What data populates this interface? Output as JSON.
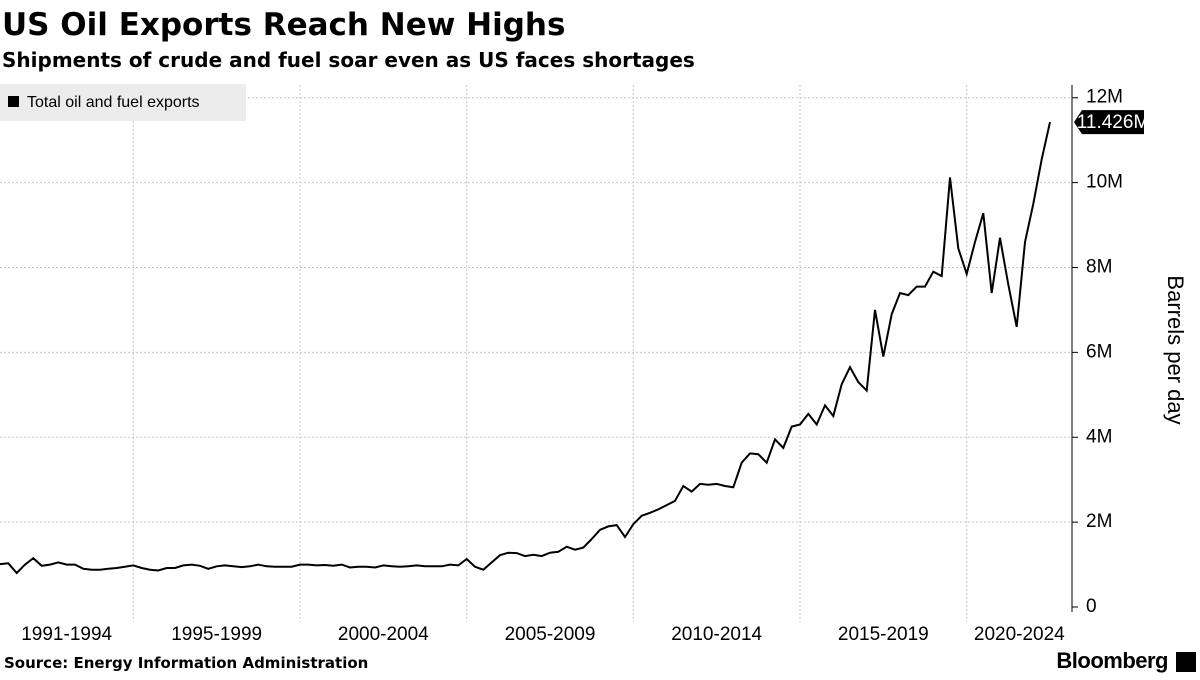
{
  "chart_data": {
    "type": "line",
    "title": "US Oil Exports Reach New Highs",
    "subtitle": "Shipments of crude and fuel soar even as US faces shortages",
    "source": "Source: Energy Information Administration",
    "brand": "Bloomberg",
    "y_label": "Barrels per day",
    "categories": [
      null,
      null,
      null,
      null,
      null,
      null,
      null,
      null,
      "1991-1994",
      null,
      null,
      null,
      null,
      null,
      null,
      null,
      null,
      null,
      null,
      null,
      null,
      null,
      null,
      null,
      null,
      null,
      "1995-1999",
      null,
      null,
      null,
      null,
      null,
      null,
      null,
      null,
      null,
      null,
      null,
      null,
      null,
      null,
      null,
      null,
      null,
      null,
      null,
      "2000-2004",
      null,
      null,
      null,
      null,
      null,
      null,
      null,
      null,
      null,
      null,
      null,
      null,
      null,
      null,
      null,
      null,
      null,
      null,
      null,
      "2005-2009",
      null,
      null,
      null,
      null,
      null,
      null,
      null,
      null,
      null,
      null,
      null,
      null,
      null,
      null,
      null,
      null,
      null,
      null,
      null,
      "2010-2014",
      null,
      null,
      null,
      null,
      null,
      null,
      null,
      null,
      null,
      null,
      null,
      null,
      null,
      null,
      null,
      null,
      null,
      null,
      null,
      "2015-2019",
      null,
      null,
      null,
      null,
      null,
      null,
      null,
      null,
      null,
      null,
      null,
      null,
      null,
      null,
      null,
      null,
      null,
      null,
      null,
      "2020-2024"
    ],
    "series": [
      {
        "name": "Total oil and fuel exports",
        "color": "#000000",
        "values": [
          1.01,
          1.03,
          0.8,
          1.0,
          1.15,
          0.97,
          1.0,
          1.05,
          1.0,
          1.0,
          0.9,
          0.88,
          0.88,
          0.9,
          0.92,
          0.95,
          0.98,
          0.92,
          0.88,
          0.86,
          0.92,
          0.92,
          0.98,
          1.0,
          0.97,
          0.9,
          0.96,
          0.98,
          0.96,
          0.94,
          0.96,
          1.0,
          0.96,
          0.95,
          0.95,
          0.95,
          1.0,
          1.0,
          0.98,
          0.99,
          0.97,
          1.0,
          0.93,
          0.95,
          0.95,
          0.93,
          0.98,
          0.96,
          0.95,
          0.96,
          0.98,
          0.96,
          0.96,
          0.96,
          1.0,
          0.98,
          1.13,
          0.95,
          0.88,
          1.05,
          1.22,
          1.28,
          1.27,
          1.2,
          1.23,
          1.2,
          1.28,
          1.3,
          1.42,
          1.35,
          1.4,
          1.6,
          1.82,
          1.9,
          1.93,
          1.65,
          1.95,
          2.15,
          2.22,
          2.3,
          2.4,
          2.5,
          2.85,
          2.72,
          2.9,
          2.88,
          2.9,
          2.85,
          2.82,
          3.4,
          3.62,
          3.6,
          3.4,
          3.95,
          3.75,
          4.25,
          4.3,
          4.55,
          4.3,
          4.75,
          4.5,
          5.25,
          5.65,
          5.3,
          5.1,
          7.0,
          5.9,
          6.9,
          7.4,
          7.35,
          7.55,
          7.55,
          7.9,
          7.8,
          10.12,
          8.45,
          7.85,
          8.6,
          9.28,
          7.4,
          8.7,
          7.6,
          6.6,
          8.6,
          9.5,
          10.55,
          11.426
        ],
        "value_labels": [
          null,
          null,
          null,
          null,
          null,
          null,
          null,
          null,
          null,
          null,
          null,
          null,
          null,
          null,
          null,
          null,
          null,
          null,
          null,
          null,
          null,
          null,
          null,
          null,
          null,
          null,
          null,
          null,
          null,
          null,
          null,
          null,
          null,
          null,
          null,
          null,
          null,
          null,
          null,
          null,
          null,
          null,
          null,
          null,
          null,
          null,
          null,
          null,
          null,
          null,
          null,
          null,
          null,
          null,
          null,
          null,
          null,
          null,
          null,
          null,
          null,
          null,
          null,
          null,
          null,
          null,
          null,
          null,
          null,
          null,
          null,
          null,
          null,
          null,
          null,
          null,
          null,
          null,
          null,
          null,
          null,
          null,
          null,
          null,
          null,
          null,
          null,
          null,
          null,
          null,
          null,
          null,
          null,
          null,
          null,
          null,
          null,
          null,
          null,
          null,
          null,
          null,
          null,
          null,
          null,
          null,
          null,
          null,
          null,
          null,
          null,
          null,
          null,
          null,
          null,
          null,
          null,
          null,
          null,
          null,
          null,
          null,
          null,
          null,
          null,
          null,
          "11.426M"
        ]
      }
    ],
    "ylim": [
      0,
      12.3
    ],
    "yticks": [
      {
        "value": 0,
        "label": "0"
      },
      {
        "value": 2,
        "label": "2M"
      },
      {
        "value": 4,
        "label": "4M"
      },
      {
        "value": 6,
        "label": "6M"
      },
      {
        "value": 8,
        "label": "8M"
      },
      {
        "value": 10,
        "label": "10M"
      },
      {
        "value": 12,
        "label": "12M"
      }
    ],
    "grid": true,
    "legend": "upper left"
  }
}
